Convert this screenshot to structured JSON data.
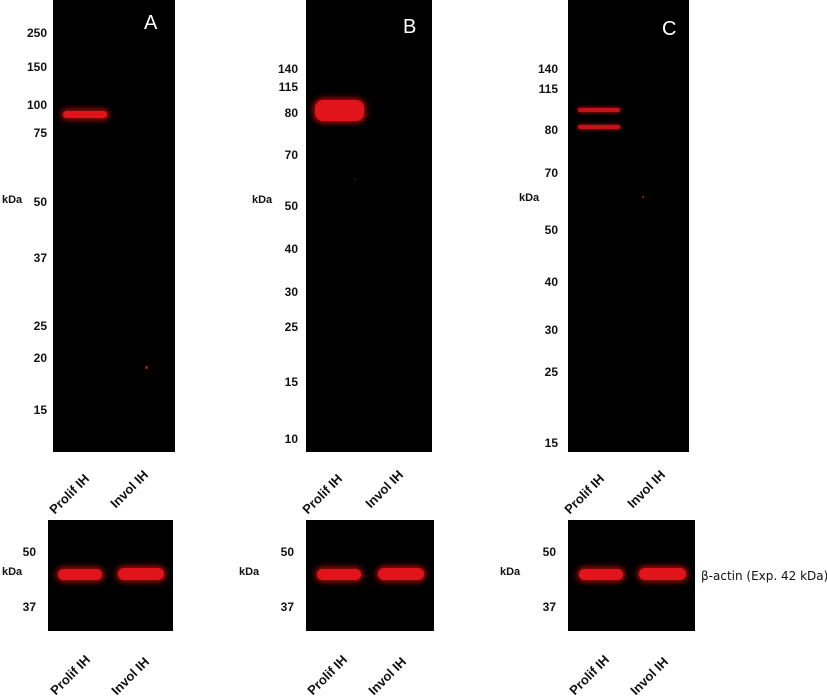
{
  "blots": [
    {
      "letter": "A",
      "markers": [
        "250",
        "150",
        "100",
        "75",
        "50",
        "37",
        "25",
        "20",
        "15"
      ],
      "unit": "kDa",
      "lanes": [
        "Prolif IH",
        "Invol IH"
      ]
    },
    {
      "letter": "B",
      "markers": [
        "140",
        "115",
        "80",
        "70",
        "50",
        "40",
        "30",
        "25",
        "15",
        "10"
      ],
      "unit": "kDa",
      "lanes": [
        "Prolif IH",
        "Invol IH"
      ]
    },
    {
      "letter": "C",
      "markers": [
        "140",
        "115",
        "80",
        "70",
        "50",
        "40",
        "30",
        "25",
        "15"
      ],
      "unit": "kDa",
      "lanes": [
        "Prolif IH",
        "Invol IH"
      ]
    }
  ],
  "loading_control": {
    "markers": [
      "50",
      "37"
    ],
    "unit": "kDa",
    "lanes": [
      "Prolif IH",
      "Invol IH"
    ],
    "label": "β-actin (Exp. 42 kDa)"
  },
  "colors": {
    "band": "#e0141a",
    "membrane": "#000000"
  }
}
